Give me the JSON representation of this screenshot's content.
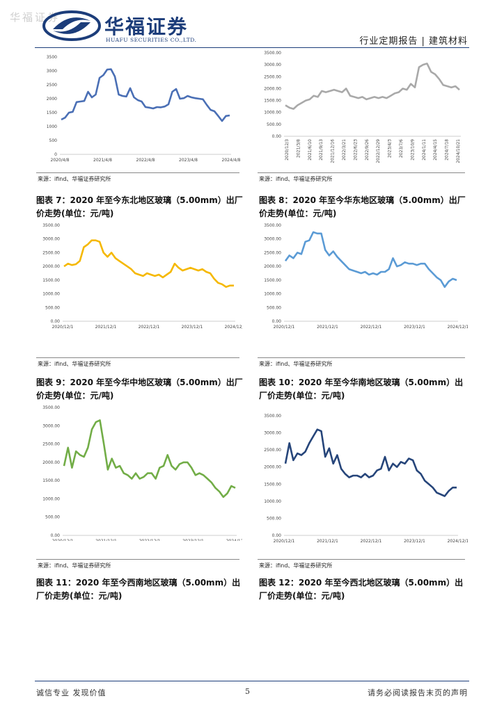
{
  "header": {
    "watermark": "华福证券",
    "logo_cn": "华福证券",
    "logo_en": "HUAFU SECURITIES CO.,LTD.",
    "report_tag": "行业定期报告 | 建筑材料"
  },
  "footer": {
    "left": "诚信专业  发现价值",
    "page_number": "5",
    "right": "请务必阅读报告末页的声明"
  },
  "colors": {
    "brand": "#1c3d7a",
    "chart6": "#4a6fb5",
    "chart6b": "#a9a9a9",
    "chart7": "#f5b800",
    "chart8": "#5b9bd5",
    "chart9": "#72ad47",
    "chart10": "#26457a"
  },
  "charts": [
    {
      "id": "c5",
      "source": "来源：ifind、华福证券研究所",
      "caption": "",
      "chart_data": {
        "type": "line",
        "title": "",
        "series": [
          {
            "values": [
              1250,
              1320,
              1500,
              1530,
              1880,
              1900,
              1920,
              2250,
              2050,
              2150,
              2750,
              2850,
              3050,
              3060,
              2800,
              2150,
              2100,
              2080,
              2380,
              2050,
              1950,
              1900,
              1700,
              1680,
              1650,
              1700,
              1690,
              1720,
              1800,
              2250,
              2350,
              2000,
              2020,
              2100,
              2050,
              2020,
              2000,
              1980,
              1780,
              1600,
              1550,
              1380,
              1200,
              1380,
              1400
            ]
          }
        ],
        "x_ticks": [
          "2020/4/8",
          "2021/4/8",
          "2022/4/8",
          "2023/4/8",
          "2024/4/8"
        ],
        "y_ticks": [
          "0",
          "500",
          "1000",
          "1500",
          "2000",
          "2500",
          "3000",
          "3500"
        ],
        "ylim": [
          0,
          3500
        ]
      }
    },
    {
      "id": "c6",
      "source": "来源：ifind、华福证券研究所",
      "caption": "",
      "chart_data": {
        "type": "line",
        "title": "",
        "series": [
          {
            "values": [
              1300,
              1200,
              1150,
              1300,
              1400,
              1500,
              1550,
              1700,
              1650,
              1900,
              1850,
              1900,
              1950,
              1900,
              1850,
              2000,
              1700,
              1650,
              1600,
              1650,
              1550,
              1600,
              1650,
              1600,
              1650,
              1600,
              1700,
              1800,
              1850,
              2000,
              1950,
              2200,
              2050,
              2900,
              3000,
              3050,
              2700,
              2600,
              2400,
              2150,
              2100,
              2050,
              2100,
              1950
            ]
          }
        ],
        "x_ticks": [
          "2020/12/3",
          "2021/3/8",
          "2021/6/10",
          "2021/9/13",
          "2021/12/16",
          "2022/3/21",
          "2022/6/23",
          "2022/9/26",
          "2022/12/29",
          "2023/4/3",
          "2023/7/6",
          "2023/10/9",
          "2024/1/11",
          "2024/4/15",
          "2024/7/18",
          "2024/10/21"
        ],
        "y_ticks": [
          "0.00",
          "500.00",
          "1000.00",
          "1500.00",
          "2000.00",
          "2500.00",
          "3000.00",
          "3500.00"
        ],
        "ylim": [
          0,
          3500
        ]
      }
    },
    {
      "id": "c7",
      "source": "来源：ifind、华福证券研究所",
      "caption": "图表 7：2020 年至今东北地区玻璃（5.00mm）出厂价走势(单位：元/吨)",
      "chart_data": {
        "type": "line",
        "title": "",
        "series": [
          {
            "values": [
              2000,
              2100,
              2050,
              2080,
              2200,
              2700,
              2800,
              2950,
              2950,
              2900,
              2500,
              2350,
              2500,
              2300,
              2200,
              2100,
              2000,
              1900,
              1750,
              1700,
              1650,
              1750,
              1700,
              1650,
              1700,
              1600,
              1700,
              1800,
              2100,
              1950,
              1850,
              1900,
              1950,
              1900,
              1850,
              1900,
              1800,
              1750,
              1550,
              1400,
              1350,
              1250,
              1300,
              1300
            ]
          }
        ],
        "x_ticks": [
          "2020/12/1",
          "2021/12/1",
          "2022/12/1",
          "2023/12/1",
          "2024/12/1"
        ],
        "y_ticks": [
          "0.00",
          "500.00",
          "1000.00",
          "1500.00",
          "2000.00",
          "2500.00",
          "3000.00",
          "3500.00"
        ],
        "ylim": [
          0,
          3500
        ]
      }
    },
    {
      "id": "c8",
      "source": "来源：ifind、华福证券研究所",
      "caption": "图表 8：2020 年至今华东地区玻璃（5.00mm）出厂价走势(单位：元/吨)",
      "chart_data": {
        "type": "line",
        "title": "",
        "series": [
          {
            "values": [
              2200,
              2400,
              2300,
              2500,
              2450,
              2900,
              2950,
              3250,
              3200,
              3200,
              2600,
              2400,
              2550,
              2350,
              2200,
              2050,
              1900,
              1850,
              1800,
              1750,
              1800,
              1700,
              1750,
              1700,
              1800,
              1800,
              1900,
              2300,
              2000,
              2050,
              2150,
              2100,
              2100,
              2050,
              2100,
              2100,
              1900,
              1750,
              1600,
              1500,
              1250,
              1450,
              1550,
              1500
            ]
          }
        ],
        "x_ticks": [
          "2020/12/1",
          "2021/12/1",
          "2022/12/1",
          "2023/12/1",
          "2024/12/1"
        ],
        "y_ticks": [
          "0.00",
          "500.00",
          "1000.00",
          "1500.00",
          "2000.00",
          "2500.00",
          "3000.00",
          "3500.00"
        ],
        "ylim": [
          0,
          3500
        ]
      }
    },
    {
      "id": "c9",
      "source": "来源：ifind、华福证券研究所",
      "caption": "图表 9：2020 年至今华中地区玻璃（5.00mm）出厂价走势(单位：元/吨)",
      "chart_data": {
        "type": "line",
        "title": "",
        "series": [
          {
            "values": [
              1900,
              2400,
              1850,
              2300,
              2200,
              2150,
              2400,
              2900,
              3100,
              3150,
              2500,
              1800,
              2100,
              1850,
              1900,
              1700,
              1650,
              1550,
              1700,
              1550,
              1600,
              1700,
              1700,
              1550,
              1850,
              1900,
              2200,
              1900,
              1800,
              1950,
              2000,
              2000,
              1850,
              1650,
              1700,
              1650,
              1550,
              1450,
              1300,
              1200,
              1050,
              1150,
              1350,
              1300
            ]
          }
        ],
        "x_ticks": [
          "2020/12/1",
          "2021/12/1",
          "2022/12/1",
          "2023/12/1",
          "2024/12/1"
        ],
        "y_ticks": [
          "0.00",
          "500.00",
          "1000.00",
          "1500.00",
          "2000.00",
          "2500.00",
          "3000.00",
          "3500.00"
        ],
        "ylim": [
          0,
          3500
        ]
      }
    },
    {
      "id": "c10",
      "source": "来源：ifind、华福证券研究所",
      "caption": "图表 10：2020 年至今华南地区玻璃（5.00mm）出厂价走势(单位：元/吨)",
      "chart_data": {
        "type": "line",
        "title": "",
        "series": [
          {
            "values": [
              2100,
              2700,
              2200,
              2400,
              2350,
              2450,
              2700,
              2900,
              3100,
              3050,
              2300,
              2550,
              2100,
              2350,
              1950,
              1800,
              1700,
              1750,
              1750,
              1700,
              1800,
              1700,
              1750,
              1900,
              1950,
              2300,
              1900,
              2100,
              2000,
              2150,
              2100,
              2250,
              2200,
              1900,
              1800,
              1600,
              1500,
              1400,
              1250,
              1200,
              1150,
              1300,
              1400,
              1400
            ]
          }
        ],
        "x_ticks": [
          "2020/12/1",
          "2021/12/1",
          "2022/12/1",
          "2023/12/1",
          "2024/12/1"
        ],
        "y_ticks": [
          "0.00",
          "500.00",
          "1000.00",
          "1500.00",
          "2000.00",
          "2500.00",
          "3000.00",
          "3500.00"
        ],
        "ylim": [
          0,
          3500
        ]
      }
    }
  ],
  "captions_bottom": {
    "c11": "图表 11：2020 年至今西南地区玻璃（5.00mm）出厂价走势(单位：元/吨)",
    "c12": "图表 12：2020 年至今西北地区玻璃（5.00mm）出厂价走势(单位：元/吨)"
  }
}
